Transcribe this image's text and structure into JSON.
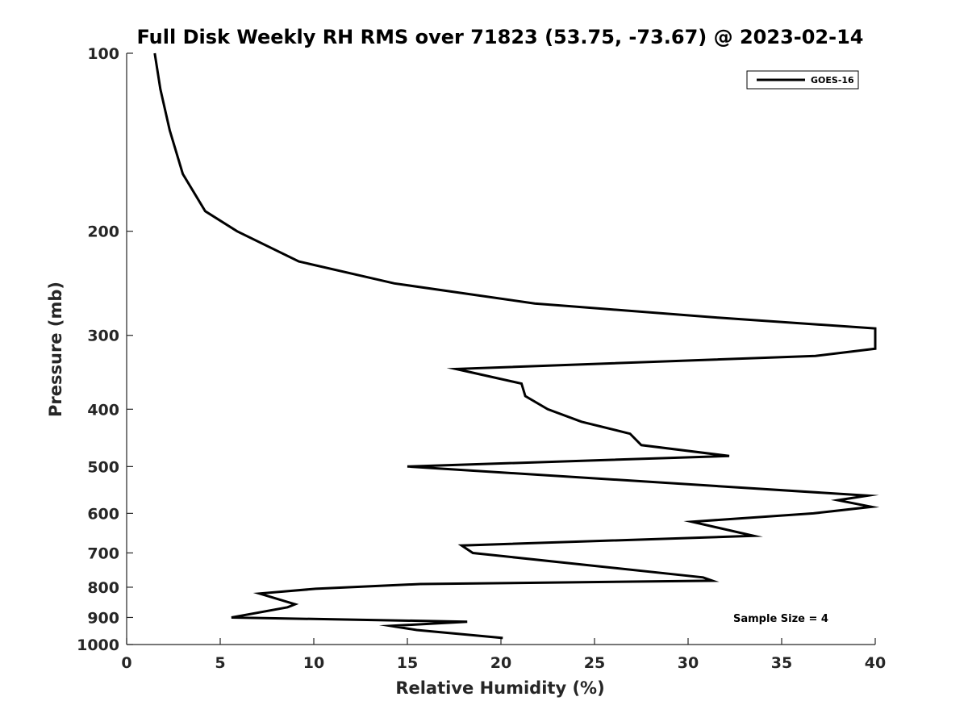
{
  "chart_data": {
    "type": "line",
    "title": "Full Disk Weekly RH RMS over 71823 (53.75, -73.67) @ 2023-02-14",
    "xlabel": "Relative Humidity (%)",
    "ylabel": "Pressure (mb)",
    "xlim": [
      0,
      40
    ],
    "ylim": [
      100,
      1000
    ],
    "yscale": "log",
    "y_reversed": true,
    "grid": false,
    "legend_position": "top-right",
    "x_ticks": [
      0,
      5,
      10,
      15,
      20,
      25,
      30,
      35,
      40
    ],
    "y_ticks": [
      100,
      200,
      300,
      400,
      500,
      600,
      700,
      800,
      900,
      1000
    ],
    "annotation": "Sample Size = 4",
    "series": [
      {
        "name": "GOES-16",
        "color": "#000000",
        "points": [
          [
            1.5,
            100
          ],
          [
            1.8,
            115
          ],
          [
            2.3,
            135
          ],
          [
            3.0,
            160
          ],
          [
            4.2,
            185
          ],
          [
            5.9,
            200
          ],
          [
            9.2,
            225
          ],
          [
            14.3,
            245
          ],
          [
            21.8,
            265
          ],
          [
            31.6,
            280
          ],
          [
            40.0,
            292
          ],
          [
            40.0,
            316
          ],
          [
            36.8,
            325
          ],
          [
            17.6,
            342
          ],
          [
            21.1,
            362
          ],
          [
            21.3,
            380
          ],
          [
            22.5,
            400
          ],
          [
            24.3,
            420
          ],
          [
            26.9,
            440
          ],
          [
            27.5,
            460
          ],
          [
            32.2,
            480
          ],
          [
            15.0,
            500
          ],
          [
            39.6,
            560
          ],
          [
            38.0,
            570
          ],
          [
            39.8,
            585
          ],
          [
            36.7,
            600
          ],
          [
            30.2,
            620
          ],
          [
            33.5,
            655
          ],
          [
            17.9,
            680
          ],
          [
            18.5,
            700
          ],
          [
            30.8,
            770
          ],
          [
            31.3,
            780
          ],
          [
            15.7,
            790
          ],
          [
            10.1,
            805
          ],
          [
            7.1,
            820
          ],
          [
            9.0,
            855
          ],
          [
            8.6,
            865
          ],
          [
            5.6,
            900
          ],
          [
            18.2,
            915
          ],
          [
            14.1,
            930
          ],
          [
            15.5,
            945
          ],
          [
            20.1,
            975
          ]
        ]
      }
    ]
  }
}
